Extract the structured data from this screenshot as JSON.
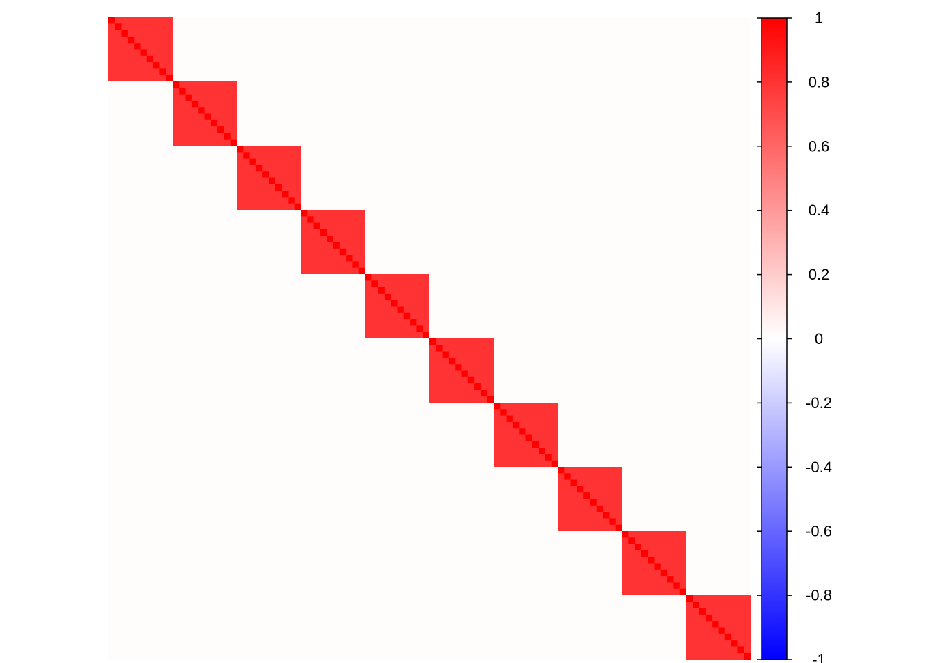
{
  "chart_data": {
    "type": "heatmap",
    "title": "",
    "n_vars": 100,
    "block_size": 10,
    "n_blocks": 10,
    "within_block_correlation": 0.8,
    "diagonal_value": 1,
    "off_block_correlation": 0,
    "colorbar": {
      "range": [
        -1,
        1
      ],
      "colors": {
        "low": "#0000ff",
        "mid": "#ffffff",
        "high": "#ff0000"
      },
      "tick_values": [
        1,
        0.8,
        0.6,
        0.4,
        0.2,
        0,
        -0.2,
        -0.4,
        -0.6,
        -0.8,
        -1
      ],
      "tick_labels": [
        "1",
        "0.8",
        "0.6",
        "0.4",
        "0.2",
        "0",
        "-0.2",
        "-0.4",
        "-0.6",
        "-0.8",
        "-1"
      ]
    },
    "grid": false,
    "legend": "right"
  }
}
